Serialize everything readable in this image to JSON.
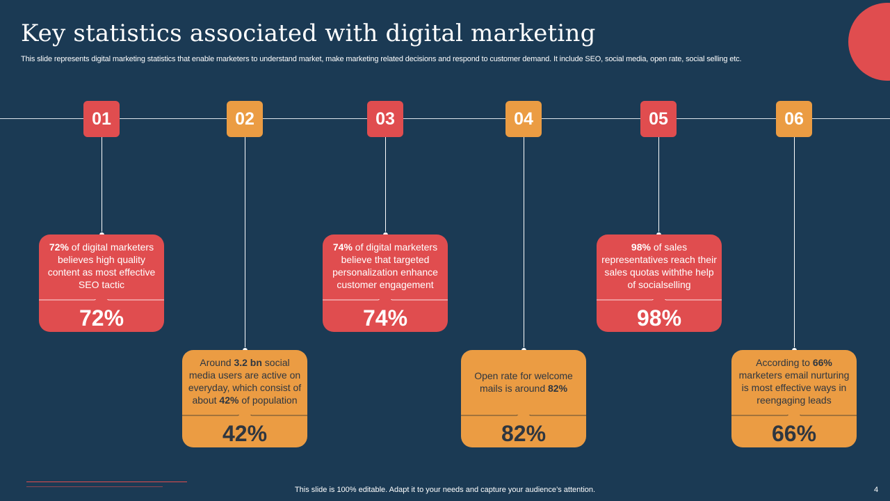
{
  "title": "Key statistics associated with digital marketing",
  "subtitle": "This slide represents digital marketing statistics that enable marketers to understand market, make marketing related decisions and respond to customer demand. It include SEO,  social media, open rate, social selling etc.",
  "colors": {
    "background": "#1b3a54",
    "red": "#e04d4f",
    "orange": "#eb9c43"
  },
  "steps": [
    {
      "number": "01",
      "value": "72%",
      "color": "red",
      "text": [
        {
          "b": "72%"
        },
        {
          "t": " of digital marketers believes high quality content as most effective SEO tactic"
        }
      ]
    },
    {
      "number": "02",
      "value": "42%",
      "color": "orange",
      "text": [
        {
          "t": "Around "
        },
        {
          "b": "3.2 bn"
        },
        {
          "t": " social media users are active on everyday, which consist of about "
        },
        {
          "b": "42%"
        },
        {
          "t": " of population"
        }
      ]
    },
    {
      "number": "03",
      "value": "74%",
      "color": "red",
      "text": [
        {
          "b": "74%"
        },
        {
          "t": " of digital marketers believe that targeted personalization enhance customer engagement"
        }
      ]
    },
    {
      "number": "04",
      "value": "82%",
      "color": "orange",
      "text": [
        {
          "t": "Open rate for welcome mails is around "
        },
        {
          "b": "82%"
        }
      ]
    },
    {
      "number": "05",
      "value": "98%",
      "color": "red",
      "text": [
        {
          "b": "98%"
        },
        {
          "t": " of sales representatives reach their sales quotas withthe help of socialselling"
        }
      ]
    },
    {
      "number": "06",
      "value": "66%",
      "color": "orange",
      "text": [
        {
          "t": "According to "
        },
        {
          "b": "66%"
        },
        {
          "t": " marketers email nurturing is most effective ways in reengaging leads"
        }
      ]
    }
  ],
  "footer": "This slide is 100% editable. Adapt it to your needs and capture your audience’s attention.",
  "page_number": "4"
}
